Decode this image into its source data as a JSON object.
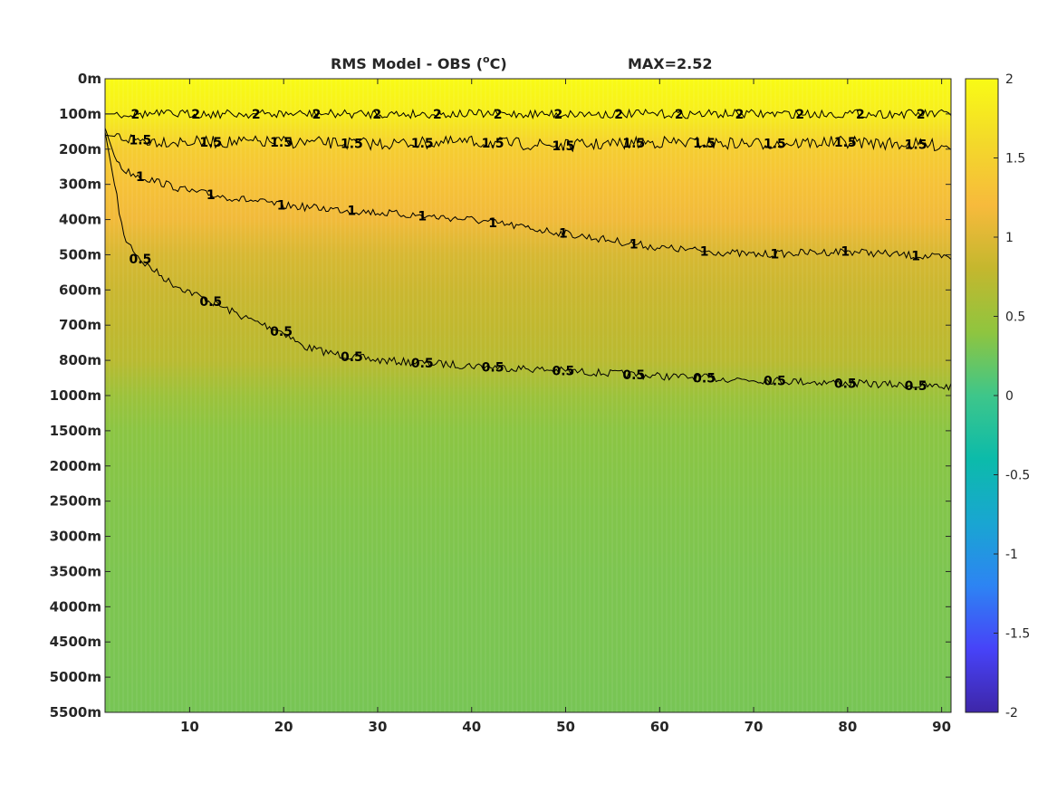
{
  "chart_data": {
    "type": "heatmap",
    "title": "RMS Model - OBS (",
    "title_unit_sup": "o",
    "title_unit_rest": "C)",
    "max_label": "MAX=2.52",
    "xlabel": "",
    "ylabel": "",
    "x_ticks": [
      10,
      20,
      30,
      40,
      50,
      60,
      70,
      80,
      90
    ],
    "xlim": [
      1,
      91
    ],
    "y_tick_labels": [
      "0m",
      "100m",
      "200m",
      "300m",
      "400m",
      "500m",
      "600m",
      "700m",
      "800m",
      "1000m",
      "1500m",
      "2000m",
      "2500m",
      "3000m",
      "3500m",
      "4000m",
      "4500m",
      "5000m",
      "5500m"
    ],
    "clim": [
      -2,
      2
    ],
    "colorbar_ticks": [
      {
        "value": 2,
        "label": "2"
      },
      {
        "value": 1.5,
        "label": "1.5"
      },
      {
        "value": 1,
        "label": "1"
      },
      {
        "value": 0.5,
        "label": "0.5"
      },
      {
        "value": 0,
        "label": "0"
      },
      {
        "value": -0.5,
        "label": "-0.5"
      },
      {
        "value": -1,
        "label": "-1"
      },
      {
        "value": -1.5,
        "label": "-1.5"
      },
      {
        "value": -2,
        "label": "-2"
      }
    ],
    "colormap": [
      "#3e26a8",
      "#4743f8",
      "#2d84f3",
      "#19a6d1",
      "#0cbbaa",
      "#3ec68a",
      "#8fc53f",
      "#c4b72e",
      "#f7ba3c",
      "#f3d92a",
      "#f9fb15"
    ],
    "depth_profile": {
      "y_level": [
        0,
        1,
        2,
        3,
        4,
        5,
        6,
        7,
        8,
        9,
        10,
        12,
        14,
        16,
        18
      ],
      "rms": [
        2.0,
        1.85,
        1.45,
        1.3,
        1.15,
        0.95,
        0.85,
        0.78,
        0.72,
        0.5,
        0.38,
        0.34,
        0.31,
        0.3,
        0.28
      ]
    },
    "contours": [
      {
        "level": 0.5,
        "label": "0.5",
        "x": [
          1,
          2,
          3,
          5,
          8,
          12,
          16,
          20,
          22,
          25,
          30,
          40,
          50,
          60,
          70,
          80,
          91
        ],
        "y_level": [
          1.5,
          3,
          4.5,
          5.2,
          5.8,
          6.3,
          6.8,
          7.2,
          7.6,
          7.8,
          8.0,
          8.15,
          8.3,
          8.45,
          8.55,
          8.65,
          8.75
        ]
      },
      {
        "level": 1,
        "label": "1",
        "x": [
          1,
          2,
          3,
          5,
          10,
          20,
          30,
          40,
          50,
          60,
          70,
          80,
          91
        ],
        "y_level": [
          1.4,
          2.2,
          2.6,
          2.8,
          3.2,
          3.6,
          3.8,
          4.0,
          4.4,
          4.8,
          5.0,
          4.9,
          5.1
        ]
      },
      {
        "level": 1.5,
        "label": "1.5",
        "x": [
          1,
          5,
          10,
          20,
          30,
          40,
          50,
          60,
          70,
          80,
          91
        ],
        "y_level": [
          1.6,
          1.75,
          1.8,
          1.8,
          1.85,
          1.8,
          1.9,
          1.8,
          1.85,
          1.8,
          1.9
        ]
      },
      {
        "level": 2,
        "label": "2",
        "x": [
          1,
          91
        ],
        "y_level": [
          1.0,
          1.0
        ]
      }
    ]
  }
}
